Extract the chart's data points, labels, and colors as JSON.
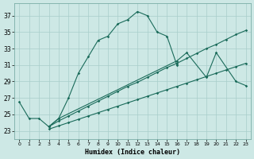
{
  "xlabel": "Humidex (Indice chaleur)",
  "background_color": "#cde8e5",
  "grid_color": "#a8ceca",
  "line_color": "#1a6b5a",
  "xlim": [
    -0.5,
    23.5
  ],
  "ylim": [
    22.0,
    38.5
  ],
  "xticks": [
    0,
    1,
    2,
    3,
    4,
    5,
    6,
    7,
    8,
    9,
    10,
    11,
    12,
    13,
    14,
    15,
    16,
    17,
    18,
    19,
    20,
    21,
    22,
    23
  ],
  "yticks": [
    23,
    25,
    27,
    29,
    31,
    33,
    35,
    37
  ],
  "s1x": [
    0,
    1,
    2,
    3,
    4,
    5,
    6,
    7,
    8,
    9,
    10,
    11,
    12,
    13,
    14,
    15,
    16
  ],
  "s1y": [
    26.5,
    24.5,
    24.5,
    23.5,
    24.5,
    27.0,
    30.0,
    32.0,
    34.0,
    34.5,
    36.0,
    36.5,
    37.5,
    37.0,
    35.0,
    34.5,
    31.0
  ],
  "s2x": [
    3,
    4,
    16,
    17,
    19,
    20,
    22,
    23
  ],
  "s2y": [
    23.5,
    24.5,
    31.5,
    32.5,
    29.5,
    32.5,
    29.0,
    28.5
  ],
  "s3x": [
    3,
    4,
    5,
    6,
    7,
    8,
    9,
    10,
    11,
    12,
    13,
    14,
    15,
    16,
    17,
    18,
    19,
    20,
    21,
    22,
    23
  ],
  "s3y": [
    23.5,
    24.2,
    24.8,
    25.4,
    26.0,
    26.6,
    27.2,
    27.8,
    28.4,
    28.9,
    29.5,
    30.1,
    30.7,
    31.2,
    31.8,
    32.4,
    33.0,
    33.5,
    34.1,
    34.7,
    35.2
  ],
  "s4x": [
    3,
    4,
    5,
    6,
    7,
    8,
    9,
    10,
    11,
    12,
    13,
    14,
    15,
    16,
    17,
    18,
    19,
    20,
    21,
    22,
    23
  ],
  "s4y": [
    23.2,
    23.6,
    24.0,
    24.4,
    24.8,
    25.2,
    25.6,
    26.0,
    26.4,
    26.8,
    27.2,
    27.6,
    28.0,
    28.4,
    28.8,
    29.2,
    29.6,
    30.0,
    30.4,
    30.8,
    31.2
  ]
}
